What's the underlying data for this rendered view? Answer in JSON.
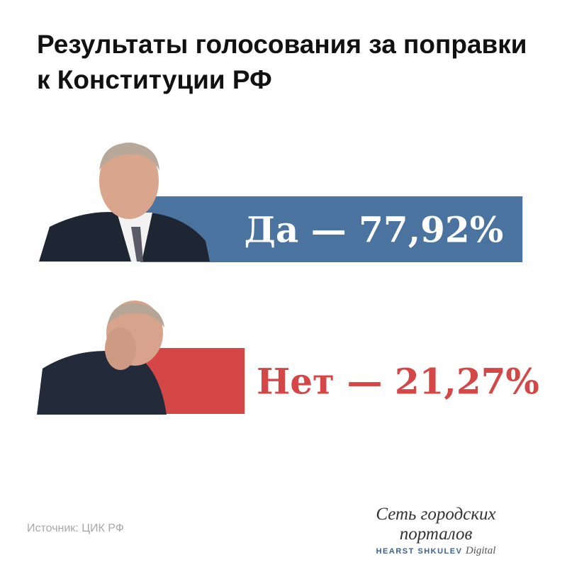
{
  "chart_data": {
    "type": "bar",
    "orientation": "horizontal",
    "title": "Результаты голосования за поправки к Конституции РФ",
    "categories": [
      "Да",
      "Нет"
    ],
    "values": [
      77.92,
      21.27
    ],
    "data_labels": [
      "Да — 77,92%",
      "Нет — 21,27%"
    ],
    "colors": [
      "#4a73a0",
      "#d54646"
    ],
    "grid": false,
    "axes_visible": false
  },
  "footer": {
    "source": "Источник: ЦИК РФ",
    "logo_line1": "Сеть городских порталов",
    "logo_line2": "HEARST SHKULEV",
    "logo_line3": "Digital"
  }
}
